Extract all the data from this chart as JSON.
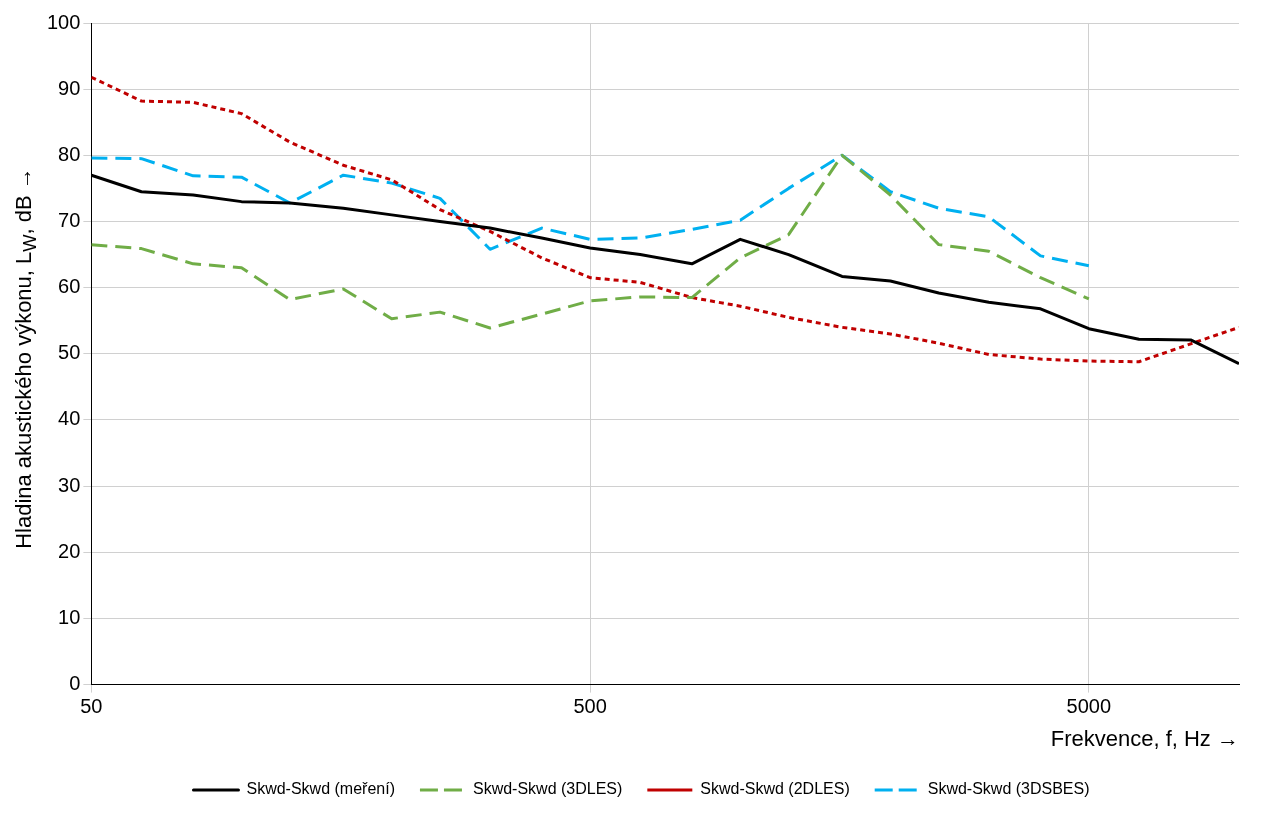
{
  "chart_data": {
    "type": "line",
    "xlabel": "Frekvence, f, Hz →",
    "ylabel": "Hladina akustického výkonu, L$_{W}$, dB →",
    "log": "x",
    "xlim": [
      50,
      10000
    ],
    "xticks": [
      50,
      500,
      5000
    ],
    "ylim": [
      0,
      100
    ],
    "yticks": [
      0,
      10,
      20,
      30,
      40,
      50,
      60,
      70,
      80,
      90,
      100
    ],
    "grid": true,
    "legend": "bottom",
    "marker": "none",
    "x": [
      50,
      63,
      80,
      100,
      125,
      160,
      200,
      250,
      315,
      400,
      500,
      630,
      800,
      1000,
      1250,
      1600,
      2000,
      2500,
      3150,
      4000,
      5000,
      6300,
      8000,
      10000
    ],
    "series": [
      {
        "name": "Skwd-Skwd (meření)",
        "color": "#000000",
        "line_style": "solid",
        "values": [
          77,
          74.5,
          74,
          73,
          72.8,
          72,
          71,
          70,
          69,
          67.5,
          66,
          65,
          63.6,
          67.3,
          65,
          61.7,
          61,
          59.2,
          57.8,
          56.8,
          53.8,
          52.2,
          52.1,
          48.5
        ]
      },
      {
        "name": "Skwd-Skwd (3DLES)",
        "color": "#70ad47",
        "line_style": "dashed",
        "values": [
          66.5,
          65.9,
          63.6,
          63,
          58.2,
          59.8,
          55.3,
          56.3,
          53.9,
          56,
          58,
          58.6,
          58.5,
          64.5,
          68,
          80,
          74,
          66.5,
          65.5,
          61.5,
          58.3,
          null,
          null,
          null
        ]
      },
      {
        "name": "Skwd-Skwd (2DLES)",
        "color": "#c00000",
        "line_style": "dotted",
        "values": [
          91.8,
          88.2,
          88,
          86.3,
          82,
          78.5,
          76.3,
          71.8,
          68.5,
          64.5,
          61.5,
          60.8,
          58.5,
          57.2,
          55.5,
          54,
          53,
          51.6,
          49.9,
          49.2,
          48.9,
          48.8,
          51.5,
          54
        ]
      },
      {
        "name": "Skwd-Skwd (3DSBES)",
        "color": "#00b0f0",
        "line_style": "dashed",
        "values": [
          79.6,
          79.5,
          76.9,
          76.7,
          72.8,
          77,
          75.8,
          73.5,
          65.8,
          69,
          67.3,
          67.5,
          68.8,
          70.2,
          75,
          80,
          74.5,
          72,
          70.7,
          64.8,
          63.3,
          null,
          null,
          null
        ]
      }
    ]
  }
}
